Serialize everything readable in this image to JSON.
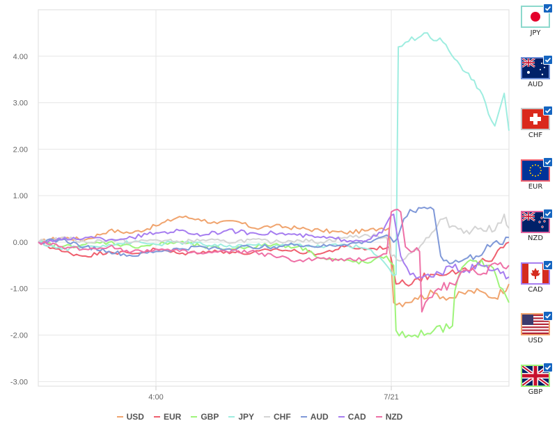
{
  "chart_data": {
    "type": "line",
    "ylim": [
      -3.1,
      5.0
    ],
    "yticks": [
      4,
      3,
      2,
      1,
      0,
      -1,
      -2,
      -3
    ],
    "ytick_labels": [
      "4.00",
      "3.00",
      "2.00",
      "1.00",
      "0.00",
      "-1.00",
      "-2.00",
      "-3.00"
    ],
    "x_range": [
      0,
      100
    ],
    "xticks": [
      {
        "x": 25,
        "label": "4:00"
      },
      {
        "x": 75,
        "label": "7/21"
      }
    ],
    "grid": true,
    "legend_placement": "bottom",
    "series": [
      {
        "name": "USD",
        "color": "#f0a46e",
        "points": [
          [
            0,
            0
          ],
          [
            5,
            0.1
          ],
          [
            10,
            0.05
          ],
          [
            15,
            0.25
          ],
          [
            20,
            0.2
          ],
          [
            25,
            0.35
          ],
          [
            30,
            0.55
          ],
          [
            34,
            0.5
          ],
          [
            38,
            0.4
          ],
          [
            42,
            0.45
          ],
          [
            46,
            0.3
          ],
          [
            50,
            0.35
          ],
          [
            55,
            0.3
          ],
          [
            60,
            0.25
          ],
          [
            65,
            0.2
          ],
          [
            70,
            0.25
          ],
          [
            73,
            0.3
          ],
          [
            74.5,
            0.3
          ],
          [
            75.5,
            -1.3
          ],
          [
            78,
            -1.3
          ],
          [
            80,
            -1.2
          ],
          [
            84,
            -1.1
          ],
          [
            88,
            -1.2
          ],
          [
            92,
            -1.05
          ],
          [
            95,
            -1.1
          ],
          [
            97,
            -1.2
          ],
          [
            100,
            -0.9
          ]
        ]
      },
      {
        "name": "EUR",
        "color": "#ef5f6e",
        "points": [
          [
            0,
            0
          ],
          [
            5,
            -0.2
          ],
          [
            10,
            -0.3
          ],
          [
            15,
            -0.2
          ],
          [
            20,
            -0.25
          ],
          [
            25,
            -0.15
          ],
          [
            30,
            -0.25
          ],
          [
            35,
            -0.2
          ],
          [
            40,
            -0.2
          ],
          [
            45,
            -0.25
          ],
          [
            50,
            -0.15
          ],
          [
            55,
            -0.2
          ],
          [
            60,
            -0.25
          ],
          [
            65,
            -0.1
          ],
          [
            70,
            -0.15
          ],
          [
            74.5,
            -0.1
          ],
          [
            76,
            -0.9
          ],
          [
            78,
            -0.9
          ],
          [
            80,
            -0.8
          ],
          [
            84,
            -0.7
          ],
          [
            88,
            -0.6
          ],
          [
            92,
            -0.6
          ],
          [
            95,
            -0.4
          ],
          [
            97,
            -0.3
          ],
          [
            100,
            0.0
          ]
        ]
      },
      {
        "name": "GBP",
        "color": "#9ef47a",
        "points": [
          [
            0,
            0
          ],
          [
            5,
            -0.1
          ],
          [
            10,
            -0.05
          ],
          [
            15,
            0.0
          ],
          [
            20,
            -0.1
          ],
          [
            25,
            -0.05
          ],
          [
            30,
            0.0
          ],
          [
            35,
            -0.1
          ],
          [
            40,
            -0.15
          ],
          [
            45,
            -0.1
          ],
          [
            50,
            -0.05
          ],
          [
            55,
            -0.1
          ],
          [
            58,
            -0.2
          ],
          [
            60,
            -0.35
          ],
          [
            65,
            -0.4
          ],
          [
            70,
            -0.45
          ],
          [
            74,
            -0.3
          ],
          [
            75.5,
            -0.5
          ],
          [
            76,
            -1.9
          ],
          [
            78,
            -2.05
          ],
          [
            80,
            -2.0
          ],
          [
            84,
            -1.9
          ],
          [
            88,
            -1.8
          ],
          [
            88.5,
            -1.05
          ],
          [
            90,
            -0.55
          ],
          [
            93,
            -0.4
          ],
          [
            96,
            -0.5
          ],
          [
            100,
            -1.3
          ]
        ]
      },
      {
        "name": "JPY",
        "color": "#9eede0",
        "points": [
          [
            0,
            0
          ],
          [
            5,
            -0.15
          ],
          [
            10,
            -0.1
          ],
          [
            15,
            -0.05
          ],
          [
            20,
            0.0
          ],
          [
            25,
            -0.05
          ],
          [
            30,
            0.0
          ],
          [
            35,
            -0.05
          ],
          [
            40,
            -0.1
          ],
          [
            45,
            -0.05
          ],
          [
            50,
            -0.1
          ],
          [
            55,
            -0.05
          ],
          [
            60,
            -0.1
          ],
          [
            65,
            -0.05
          ],
          [
            70,
            -0.15
          ],
          [
            72,
            -0.3
          ],
          [
            74,
            -0.5
          ],
          [
            76,
            -0.7
          ],
          [
            76.5,
            4.2
          ],
          [
            78,
            4.3
          ],
          [
            82,
            4.5
          ],
          [
            86,
            4.3
          ],
          [
            89,
            3.9
          ],
          [
            92,
            3.5
          ],
          [
            95,
            3.0
          ],
          [
            97,
            2.5
          ],
          [
            99,
            3.2
          ],
          [
            100,
            2.4
          ]
        ]
      },
      {
        "name": "CHF",
        "color": "#d4d4d4",
        "points": [
          [
            0,
            0
          ],
          [
            5,
            0.1
          ],
          [
            10,
            0.0
          ],
          [
            15,
            0.05
          ],
          [
            20,
            0.0
          ],
          [
            25,
            0.05
          ],
          [
            30,
            0.0
          ],
          [
            35,
            0.05
          ],
          [
            40,
            0.0
          ],
          [
            45,
            0.05
          ],
          [
            50,
            0.0
          ],
          [
            55,
            0.05
          ],
          [
            60,
            0.0
          ],
          [
            65,
            0.1
          ],
          [
            70,
            0.15
          ],
          [
            74,
            0.1
          ],
          [
            75,
            -0.3
          ],
          [
            78,
            -0.35
          ],
          [
            80,
            -0.15
          ],
          [
            83,
            0.1
          ],
          [
            86,
            0.5
          ],
          [
            88,
            0.35
          ],
          [
            91,
            0.25
          ],
          [
            94,
            0.3
          ],
          [
            97,
            0.25
          ],
          [
            99,
            0.6
          ],
          [
            100,
            0.3
          ]
        ]
      },
      {
        "name": "AUD",
        "color": "#7f98d8",
        "points": [
          [
            0,
            0
          ],
          [
            5,
            0.05
          ],
          [
            10,
            -0.1
          ],
          [
            15,
            -0.2
          ],
          [
            20,
            -0.3
          ],
          [
            25,
            -0.2
          ],
          [
            30,
            -0.15
          ],
          [
            35,
            -0.1
          ],
          [
            40,
            -0.15
          ],
          [
            45,
            -0.1
          ],
          [
            50,
            -0.1
          ],
          [
            55,
            -0.05
          ],
          [
            60,
            -0.1
          ],
          [
            65,
            -0.05
          ],
          [
            70,
            0.0
          ],
          [
            74,
            0.15
          ],
          [
            75.5,
            0.0
          ],
          [
            77,
            0.3
          ],
          [
            79,
            0.7
          ],
          [
            82,
            0.75
          ],
          [
            84,
            0.7
          ],
          [
            85.5,
            -0.3
          ],
          [
            88,
            -0.45
          ],
          [
            90,
            -0.4
          ],
          [
            93,
            -0.3
          ],
          [
            96,
            -0.1
          ],
          [
            100,
            0.1
          ]
        ]
      },
      {
        "name": "CAD",
        "color": "#a67df0",
        "points": [
          [
            0,
            0
          ],
          [
            5,
            0.05
          ],
          [
            10,
            0.1
          ],
          [
            15,
            0.05
          ],
          [
            20,
            0.1
          ],
          [
            25,
            0.2
          ],
          [
            30,
            0.25
          ],
          [
            35,
            0.15
          ],
          [
            40,
            0.25
          ],
          [
            45,
            0.2
          ],
          [
            50,
            0.2
          ],
          [
            55,
            0.15
          ],
          [
            60,
            0.1
          ],
          [
            65,
            0.05
          ],
          [
            70,
            0.05
          ],
          [
            73,
            0.2
          ],
          [
            74.5,
            0.5
          ],
          [
            75.5,
            0.6
          ],
          [
            77,
            -0.3
          ],
          [
            79,
            -0.7
          ],
          [
            81,
            -0.75
          ],
          [
            84,
            -0.75
          ],
          [
            88,
            -0.55
          ],
          [
            91,
            -0.6
          ],
          [
            94,
            -0.5
          ],
          [
            97,
            -0.6
          ],
          [
            100,
            -0.75
          ]
        ]
      },
      {
        "name": "NZD",
        "color": "#ee70a6",
        "points": [
          [
            0,
            0
          ],
          [
            5,
            -0.1
          ],
          [
            10,
            -0.15
          ],
          [
            15,
            -0.1
          ],
          [
            20,
            -0.2
          ],
          [
            25,
            -0.15
          ],
          [
            30,
            -0.2
          ],
          [
            35,
            -0.25
          ],
          [
            40,
            -0.2
          ],
          [
            45,
            -0.2
          ],
          [
            50,
            -0.3
          ],
          [
            55,
            -0.4
          ],
          [
            60,
            -0.35
          ],
          [
            65,
            -0.4
          ],
          [
            70,
            -0.35
          ],
          [
            74,
            -0.25
          ],
          [
            75,
            0.65
          ],
          [
            77,
            0.65
          ],
          [
            78,
            -0.1
          ],
          [
            81,
            -0.2
          ],
          [
            81.5,
            -1.5
          ],
          [
            83,
            -1.2
          ],
          [
            85,
            -1.0
          ],
          [
            88,
            -0.9
          ],
          [
            91,
            -0.6
          ],
          [
            94,
            -0.7
          ],
          [
            97,
            -0.45
          ],
          [
            100,
            -0.5
          ]
        ]
      }
    ]
  },
  "flags": [
    {
      "code": "JPY",
      "border": "#8cd8cc"
    },
    {
      "code": "AUD",
      "border": "#6f8fd8"
    },
    {
      "code": "CHF",
      "border": "#c9c9c9"
    },
    {
      "code": "EUR",
      "border": "#ef5f6e"
    },
    {
      "code": "NZD",
      "border": "#e065a0"
    },
    {
      "code": "CAD",
      "border": "#a67df0"
    },
    {
      "code": "USD",
      "border": "#f0a46e"
    },
    {
      "code": "GBP",
      "border": "#9ef47a"
    }
  ]
}
